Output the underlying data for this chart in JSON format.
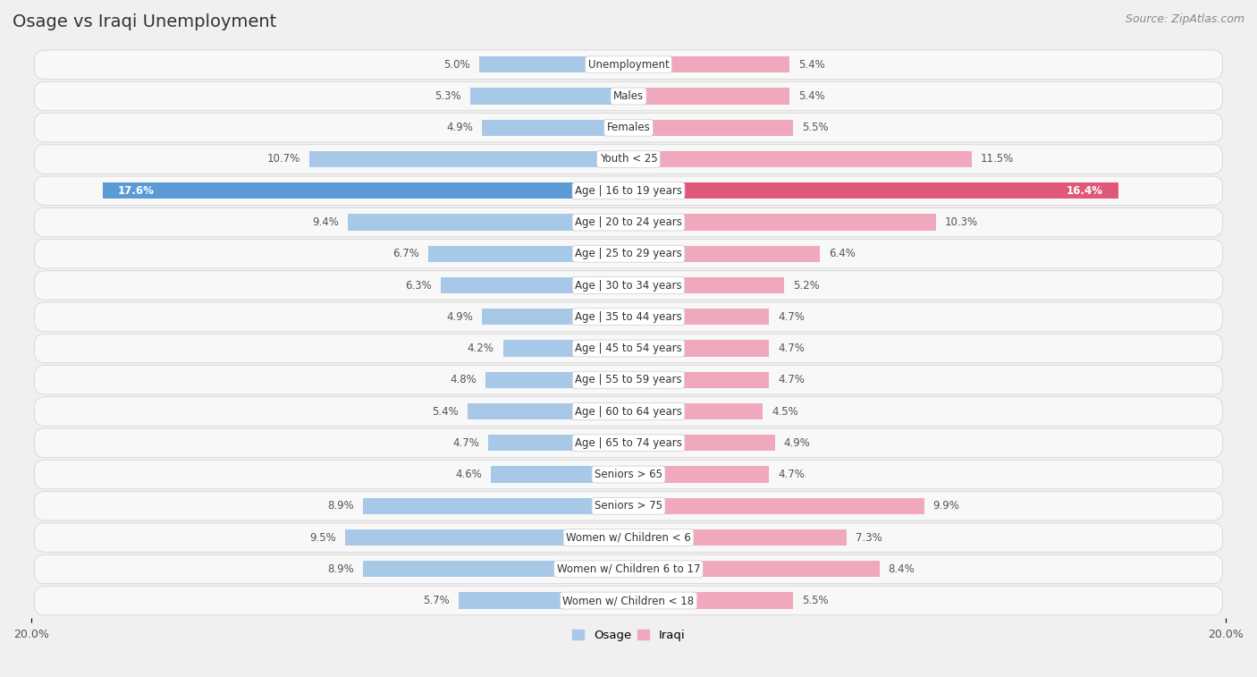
{
  "title": "Osage vs Iraqi Unemployment",
  "source": "Source: ZipAtlas.com",
  "categories": [
    "Unemployment",
    "Males",
    "Females",
    "Youth < 25",
    "Age | 16 to 19 years",
    "Age | 20 to 24 years",
    "Age | 25 to 29 years",
    "Age | 30 to 34 years",
    "Age | 35 to 44 years",
    "Age | 45 to 54 years",
    "Age | 55 to 59 years",
    "Age | 60 to 64 years",
    "Age | 65 to 74 years",
    "Seniors > 65",
    "Seniors > 75",
    "Women w/ Children < 6",
    "Women w/ Children 6 to 17",
    "Women w/ Children < 18"
  ],
  "osage_values": [
    5.0,
    5.3,
    4.9,
    10.7,
    17.6,
    9.4,
    6.7,
    6.3,
    4.9,
    4.2,
    4.8,
    5.4,
    4.7,
    4.6,
    8.9,
    9.5,
    8.9,
    5.7
  ],
  "iraqi_values": [
    5.4,
    5.4,
    5.5,
    11.5,
    16.4,
    10.3,
    6.4,
    5.2,
    4.7,
    4.7,
    4.7,
    4.5,
    4.9,
    4.7,
    9.9,
    7.3,
    8.4,
    5.5
  ],
  "osage_color": "#a8c8e8",
  "iraqi_color": "#f0a8bc",
  "osage_highlight_color": "#5b9bd5",
  "iraqi_highlight_color": "#e05878",
  "axis_max": 20.0,
  "bg_color": "#f0f0f0",
  "row_color_light": "#f8f8f8",
  "row_color_dark": "#e8e8e8",
  "title_fontsize": 14,
  "source_fontsize": 9,
  "label_fontsize": 8.5,
  "value_fontsize": 8.5,
  "legend_label_osage": "Osage",
  "legend_label_iraqi": "Iraqi",
  "highlight_row": "Age | 16 to 19 years"
}
